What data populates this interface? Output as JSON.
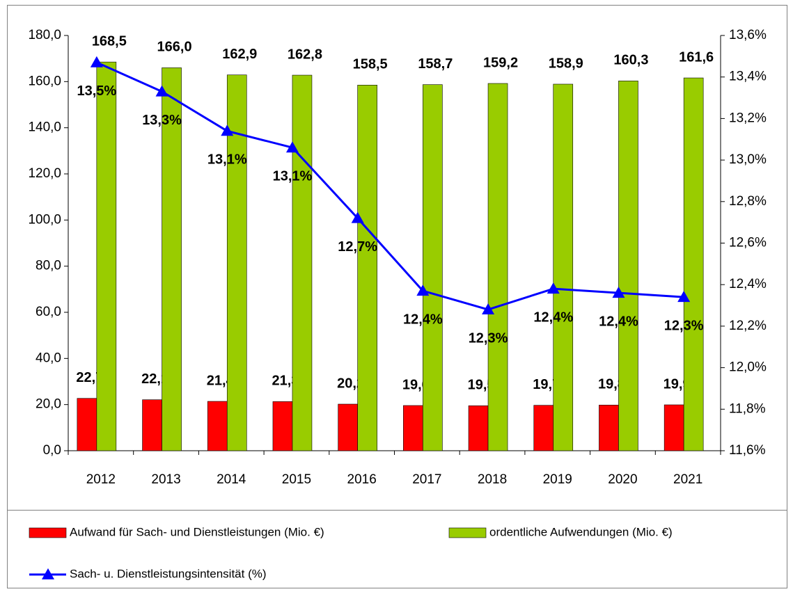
{
  "chart_data": {
    "type": "bar",
    "categories": [
      "2012",
      "2013",
      "2014",
      "2015",
      "2016",
      "2017",
      "2018",
      "2019",
      "2020",
      "2021"
    ],
    "series": [
      {
        "name": "Aufwand für Sach- und Dienstleistungen (Mio. €)",
        "color": "#ff0000",
        "values": [
          22.7,
          22.1,
          21.4,
          21.3,
          20.2,
          19.6,
          19.5,
          19.7,
          19.8,
          19.9
        ],
        "value_labels": [
          "22,7",
          "22,1",
          "21,4",
          "21,3",
          "20,2",
          "19,6",
          "19,5",
          "19,7",
          "19,8",
          "19,9"
        ]
      },
      {
        "name": "ordentliche Aufwendungen (Mio. €)",
        "color": "#99cc00",
        "values": [
          168.5,
          166.0,
          162.9,
          162.8,
          158.5,
          158.7,
          159.2,
          158.9,
          160.3,
          161.6
        ],
        "value_labels": [
          "168,5",
          "166,0",
          "162,9",
          "162,8",
          "158,5",
          "158,7",
          "159,2",
          "158,9",
          "160,3",
          "161,6"
        ]
      },
      {
        "name": "Sach- u. Dienstleistungsintensität (%)",
        "color": "#0000ff",
        "type": "line",
        "axis": "y2",
        "values": [
          13.47,
          13.33,
          13.14,
          13.06,
          12.72,
          12.37,
          12.28,
          12.38,
          12.36,
          12.34
        ],
        "value_labels": [
          "13,5%",
          "13,3%",
          "13,1%",
          "13,1%",
          "12,7%",
          "12,4%",
          "12,3%",
          "12,4%",
          "12,4%",
          "12,3%"
        ]
      }
    ],
    "ylim": [
      0,
      180
    ],
    "yticks": [
      {
        "value": 0,
        "label": "0,0"
      },
      {
        "value": 20,
        "label": "20,0"
      },
      {
        "value": 40,
        "label": "40,0"
      },
      {
        "value": 60,
        "label": "60,0"
      },
      {
        "value": 80,
        "label": "80,0"
      },
      {
        "value": 100,
        "label": "100,0"
      },
      {
        "value": 120,
        "label": "120,0"
      },
      {
        "value": 140,
        "label": "140,0"
      },
      {
        "value": 160,
        "label": "160,0"
      },
      {
        "value": 180,
        "label": "180,0"
      }
    ],
    "y2lim": [
      11.6,
      13.6
    ],
    "y2ticks": [
      {
        "value": 11.6,
        "label": "11,6%"
      },
      {
        "value": 11.8,
        "label": "11,8%"
      },
      {
        "value": 12.0,
        "label": "12,0%"
      },
      {
        "value": 12.2,
        "label": "12,2%"
      },
      {
        "value": 12.4,
        "label": "12,4%"
      },
      {
        "value": 12.6,
        "label": "12,6%"
      },
      {
        "value": 12.8,
        "label": "12,8%"
      },
      {
        "value": 13.0,
        "label": "13,0%"
      },
      {
        "value": 13.2,
        "label": "13,2%"
      },
      {
        "value": 13.4,
        "label": "13,4%"
      },
      {
        "value": 13.6,
        "label": "13,6%"
      }
    ],
    "grid": false,
    "legend": "bottom"
  }
}
